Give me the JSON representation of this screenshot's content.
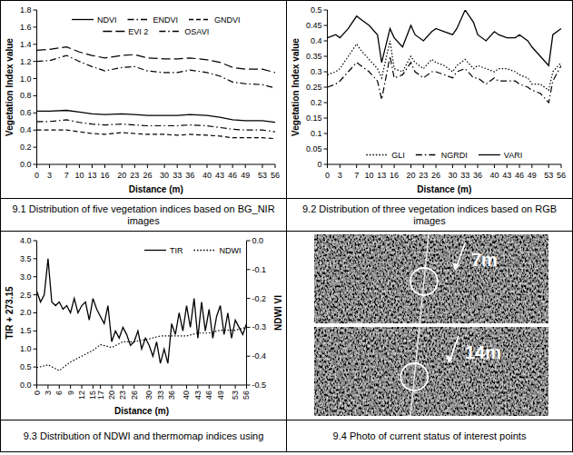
{
  "chart_data": [
    {
      "type": "line",
      "title": "9.1 Distribution of five vegetation indices based on BG_NIR images",
      "xlabel": "Distance (m)",
      "ylabel": "Vegetation Index value",
      "x": [
        0,
        3,
        7,
        10,
        13,
        16,
        20,
        23,
        26,
        30,
        33,
        36,
        40,
        43,
        46,
        49,
        53,
        56
      ],
      "xlim": [
        0,
        56
      ],
      "xticks": [
        0,
        3,
        7,
        10,
        13,
        16,
        20,
        23,
        26,
        30,
        33,
        36,
        40,
        43,
        46,
        49,
        53,
        56
      ],
      "ylim": [
        0,
        1.8
      ],
      "yticks": [
        {
          "value": 0,
          "label": "0.0"
        },
        0.2,
        0.4,
        0.6,
        0.8,
        {
          "value": 1,
          "label": "1.0"
        },
        1.2,
        1.4,
        1.6,
        1.8
      ],
      "grid": false,
      "legend": "top",
      "series": [
        {
          "name": "NDVI",
          "color": "#000000",
          "line_style": "solid",
          "values": [
            0.62,
            0.62,
            0.63,
            0.61,
            0.59,
            0.58,
            0.59,
            0.58,
            0.57,
            0.57,
            0.57,
            0.58,
            0.57,
            0.55,
            0.52,
            0.51,
            0.51,
            0.49
          ]
        },
        {
          "name": "ENDVI",
          "color": "#000000",
          "line_style": "dashdot",
          "values": [
            0.5,
            0.5,
            0.52,
            0.49,
            0.47,
            0.46,
            0.47,
            0.46,
            0.45,
            0.45,
            0.45,
            0.46,
            0.45,
            0.43,
            0.41,
            0.4,
            0.4,
            0.38
          ]
        },
        {
          "name": "GNDVI",
          "color": "#000000",
          "line_style": "dashed",
          "values": [
            0.4,
            0.4,
            0.4,
            0.38,
            0.36,
            0.35,
            0.37,
            0.36,
            0.35,
            0.35,
            0.34,
            0.35,
            0.34,
            0.33,
            0.31,
            0.31,
            0.31,
            0.3
          ]
        },
        {
          "name": "EVI 2",
          "color": "#000000",
          "line_style": "longdash",
          "values": [
            1.33,
            1.34,
            1.37,
            1.31,
            1.27,
            1.24,
            1.27,
            1.28,
            1.24,
            1.23,
            1.23,
            1.24,
            1.22,
            1.19,
            1.13,
            1.11,
            1.11,
            1.07
          ]
        },
        {
          "name": "OSAVI",
          "color": "#000000",
          "line_style": "dashdot",
          "values": [
            1.2,
            1.21,
            1.27,
            1.2,
            1.14,
            1.09,
            1.13,
            1.14,
            1.09,
            1.07,
            1.07,
            1.1,
            1.07,
            1.03,
            0.96,
            0.94,
            0.93,
            0.89
          ]
        }
      ]
    },
    {
      "type": "line",
      "title": "9.2 Distribution of three vegetation indices based on RGB images",
      "xlabel": "Distance (m)",
      "ylabel": "Vegetation Index value",
      "x": [
        0,
        2,
        3,
        5,
        7,
        8,
        10,
        12,
        13,
        15,
        16,
        18,
        20,
        21,
        23,
        25,
        26,
        28,
        30,
        31,
        33,
        35,
        36,
        38,
        40,
        41,
        43,
        45,
        46,
        48,
        49,
        51,
        53,
        54,
        56
      ],
      "xlim": [
        0,
        56
      ],
      "xticks": [
        0,
        3,
        7,
        10,
        13,
        16,
        20,
        23,
        26,
        30,
        33,
        36,
        40,
        43,
        46,
        49,
        53,
        56
      ],
      "ylim": [
        0,
        0.5
      ],
      "yticks": [
        0,
        0.05,
        0.1,
        0.15,
        0.2,
        0.25,
        0.3,
        0.35,
        0.4,
        0.45,
        0.5
      ],
      "grid": false,
      "legend": "bottom",
      "series": [
        {
          "name": "GLI",
          "color": "#000000",
          "line_style": "dotted",
          "values": [
            0.29,
            0.3,
            0.31,
            0.35,
            0.39,
            0.37,
            0.34,
            0.31,
            0.28,
            0.4,
            0.31,
            0.3,
            0.35,
            0.33,
            0.31,
            0.34,
            0.33,
            0.32,
            0.3,
            0.32,
            0.34,
            0.31,
            0.32,
            0.31,
            0.3,
            0.31,
            0.31,
            0.3,
            0.29,
            0.28,
            0.26,
            0.26,
            0.24,
            0.3,
            0.33
          ]
        },
        {
          "name": "NGRDI",
          "color": "#000000",
          "line_style": "dashdot",
          "values": [
            0.25,
            0.26,
            0.27,
            0.3,
            0.33,
            0.32,
            0.3,
            0.27,
            0.21,
            0.35,
            0.28,
            0.29,
            0.33,
            0.3,
            0.28,
            0.3,
            0.3,
            0.29,
            0.28,
            0.3,
            0.31,
            0.28,
            0.28,
            0.26,
            0.28,
            0.27,
            0.27,
            0.27,
            0.26,
            0.25,
            0.24,
            0.23,
            0.2,
            0.27,
            0.32
          ]
        },
        {
          "name": "VARI",
          "color": "#000000",
          "line_style": "solid",
          "values": [
            0.41,
            0.42,
            0.41,
            0.44,
            0.48,
            0.47,
            0.45,
            0.42,
            0.33,
            0.44,
            0.41,
            0.38,
            0.45,
            0.42,
            0.4,
            0.43,
            0.44,
            0.43,
            0.42,
            0.44,
            0.5,
            0.46,
            0.42,
            0.4,
            0.43,
            0.42,
            0.41,
            0.41,
            0.42,
            0.4,
            0.38,
            0.35,
            0.32,
            0.42,
            0.44
          ]
        }
      ]
    },
    {
      "type": "line",
      "title": "9.3 Distribution of NDWI and thermomap indices using",
      "xlabel": "Distance (m)",
      "ylabel": "TIR + 273.15",
      "y2label": "NDWI VI",
      "x": [
        0,
        1,
        2,
        3,
        4,
        5,
        6,
        7,
        8,
        9,
        10,
        11,
        12,
        13,
        14,
        15,
        16,
        17,
        18,
        19,
        20,
        21,
        22,
        23,
        24,
        25,
        26,
        27,
        28,
        29,
        30,
        31,
        32,
        33,
        34,
        35,
        36,
        37,
        38,
        39,
        40,
        41,
        42,
        43,
        44,
        45,
        46,
        47,
        48,
        49,
        50,
        51,
        52,
        53,
        54,
        55,
        56
      ],
      "xlim": [
        0,
        56
      ],
      "xticks": [
        0,
        3,
        6,
        9,
        12,
        15,
        17,
        20,
        23,
        26,
        30,
        33,
        36,
        40,
        43,
        46,
        49,
        53,
        56
      ],
      "ylim": [
        0,
        4
      ],
      "yticks": [
        {
          "value": 0,
          "label": "0.0"
        },
        0.5,
        {
          "value": 1,
          "label": "1.0"
        },
        1.5,
        {
          "value": 2,
          "label": "2.0"
        },
        2.5,
        {
          "value": 3,
          "label": "3.0"
        },
        3.5,
        {
          "value": 4,
          "label": "4.0"
        }
      ],
      "y2lim": [
        -0.5,
        0
      ],
      "y2ticks": [
        -0.5,
        -0.4,
        -0.3,
        -0.2,
        -0.1,
        {
          "value": 0,
          "label": "0.0"
        }
      ],
      "grid": false,
      "legend": "top-right",
      "series": [
        {
          "name": "TIR",
          "color": "#000000",
          "line_style": "solid",
          "values": [
            2.6,
            2.3,
            2.5,
            3.5,
            2.3,
            2.2,
            2.3,
            2.1,
            2.2,
            2.0,
            2.4,
            2.0,
            2.2,
            2.3,
            1.8,
            2.4,
            2.1,
            1.9,
            1.7,
            2.2,
            1.2,
            1.5,
            1.3,
            1.6,
            1.4,
            1.1,
            1.2,
            1.5,
            1.0,
            1.3,
            1.1,
            0.8,
            1.2,
            0.6,
            1.0,
            0.6,
            1.7,
            1.4,
            2.0,
            1.5,
            2.2,
            1.6,
            2.4,
            1.3,
            2.3,
            1.5,
            2.1,
            1.3,
            1.9,
            2.2,
            1.4,
            2.0,
            1.3,
            1.8,
            1.6,
            1.4,
            1.7
          ]
        },
        {
          "name": "NDWI",
          "color": "#000000",
          "line_style": "dotted",
          "axis": "y2",
          "x": [
            0,
            3,
            6,
            9,
            12,
            15,
            17,
            20,
            23,
            26,
            30,
            33,
            36,
            40,
            43,
            46,
            49,
            53,
            56
          ],
          "values": [
            -0.44,
            -0.43,
            -0.45,
            -0.42,
            -0.4,
            -0.38,
            -0.36,
            -0.37,
            -0.35,
            -0.35,
            -0.34,
            -0.33,
            -0.33,
            -0.33,
            -0.32,
            -0.32,
            -0.31,
            -0.31,
            -0.3
          ]
        }
      ]
    }
  ],
  "photo": {
    "caption": "9.4  Photo of current status of interest points",
    "labels": [
      "7m",
      "14m"
    ]
  }
}
